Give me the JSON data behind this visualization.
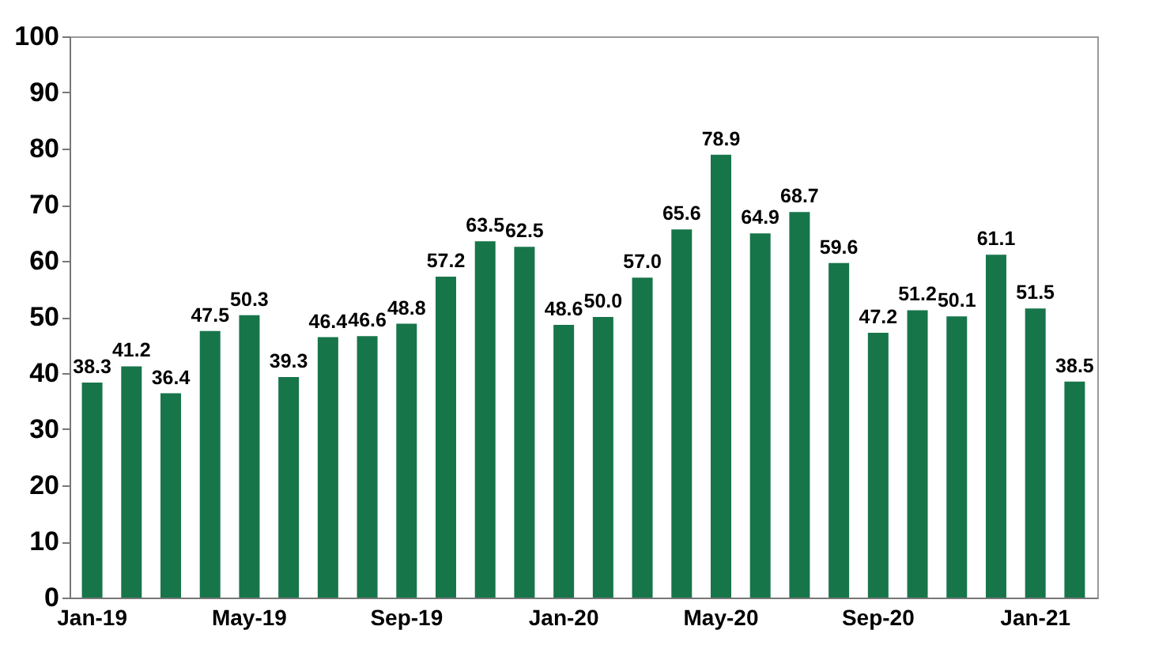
{
  "chart_data": {
    "type": "bar",
    "categories": [
      "Jan-19",
      null,
      null,
      null,
      "May-19",
      null,
      null,
      null,
      "Sep-19",
      null,
      null,
      null,
      "Jan-20",
      null,
      null,
      null,
      "May-20",
      null,
      null,
      null,
      "Sep-20",
      null,
      null,
      null,
      "Jan-21",
      null
    ],
    "values": [
      38.3,
      41.2,
      36.4,
      47.5,
      50.3,
      39.3,
      46.4,
      46.6,
      48.8,
      57.2,
      63.5,
      62.5,
      48.6,
      50.0,
      57.0,
      65.6,
      78.9,
      64.9,
      68.7,
      59.6,
      47.2,
      51.2,
      50.1,
      61.1,
      51.5,
      38.5
    ],
    "color": "#17754a",
    "ylim": [
      0,
      100
    ],
    "yticks": [
      0,
      10,
      20,
      30,
      40,
      50,
      60,
      70,
      80,
      90,
      100
    ],
    "value_labels": [
      "38.3",
      "41.2",
      "36.4",
      "47.5",
      "50.3",
      "39.3",
      "46.4",
      "46.6",
      "48.8",
      "57.2",
      "63.5",
      "62.5",
      "48.6",
      "50.0",
      "57.0",
      "65.6",
      "78.9",
      "64.9",
      "68.7",
      "59.6",
      "47.2",
      "51.2",
      "50.1",
      "61.1",
      "51.5",
      "38.5"
    ],
    "grid": false
  }
}
